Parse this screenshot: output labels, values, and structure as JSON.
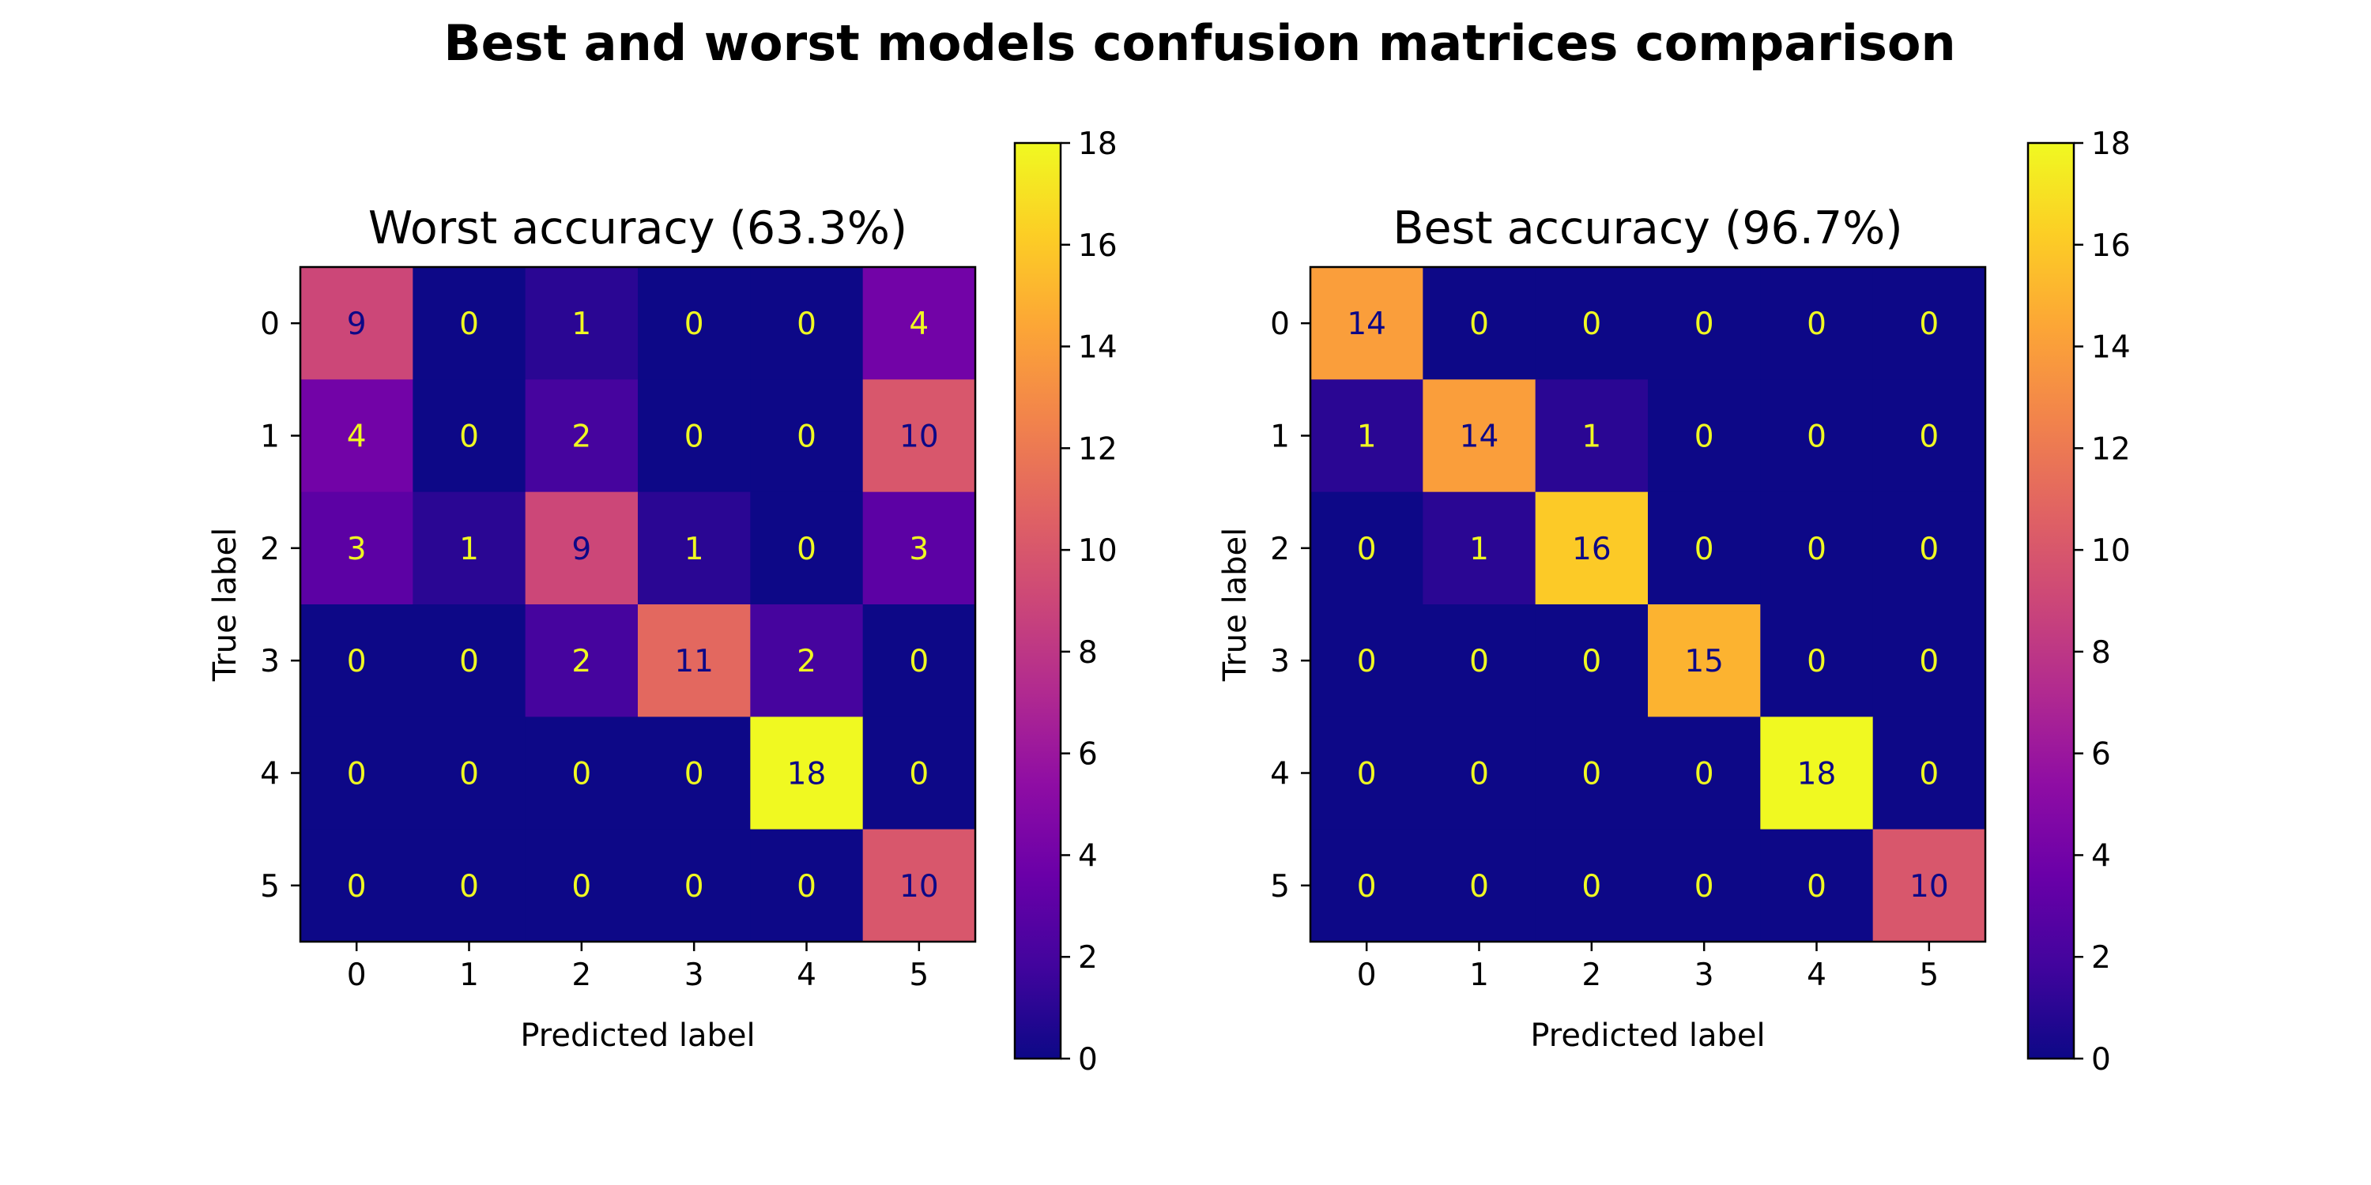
{
  "figure_title": "Best and worst models confusion matrices comparison",
  "chart_data": [
    {
      "type": "heatmap",
      "title": "Worst accuracy (63.3%)",
      "xlabel": "Predicted label",
      "ylabel": "True label",
      "x_ticks": [
        "0",
        "1",
        "2",
        "3",
        "4",
        "5"
      ],
      "y_ticks": [
        "0",
        "1",
        "2",
        "3",
        "4",
        "5"
      ],
      "matrix": [
        [
          9,
          0,
          1,
          0,
          0,
          4
        ],
        [
          4,
          0,
          2,
          0,
          0,
          10
        ],
        [
          3,
          1,
          9,
          1,
          0,
          3
        ],
        [
          0,
          0,
          2,
          11,
          2,
          0
        ],
        [
          0,
          0,
          0,
          0,
          18,
          0
        ],
        [
          0,
          0,
          0,
          0,
          0,
          10
        ]
      ],
      "colormap": "plasma",
      "color_range": [
        0,
        18
      ],
      "colorbar_ticks": [
        "0",
        "2",
        "4",
        "6",
        "8",
        "10",
        "12",
        "14",
        "16",
        "18"
      ]
    },
    {
      "type": "heatmap",
      "title": "Best accuracy (96.7%)",
      "xlabel": "Predicted label",
      "ylabel": "True label",
      "x_ticks": [
        "0",
        "1",
        "2",
        "3",
        "4",
        "5"
      ],
      "y_ticks": [
        "0",
        "1",
        "2",
        "3",
        "4",
        "5"
      ],
      "matrix": [
        [
          14,
          0,
          0,
          0,
          0,
          0
        ],
        [
          1,
          14,
          1,
          0,
          0,
          0
        ],
        [
          0,
          1,
          16,
          0,
          0,
          0
        ],
        [
          0,
          0,
          0,
          15,
          0,
          0
        ],
        [
          0,
          0,
          0,
          0,
          18,
          0
        ],
        [
          0,
          0,
          0,
          0,
          0,
          10
        ]
      ],
      "colormap": "plasma",
      "color_range": [
        0,
        18
      ],
      "colorbar_ticks": [
        "0",
        "2",
        "4",
        "6",
        "8",
        "10",
        "12",
        "14",
        "16",
        "18"
      ]
    }
  ],
  "colors": {
    "label_on_dark": "#f0f921",
    "label_on_light": "#0d0887"
  }
}
